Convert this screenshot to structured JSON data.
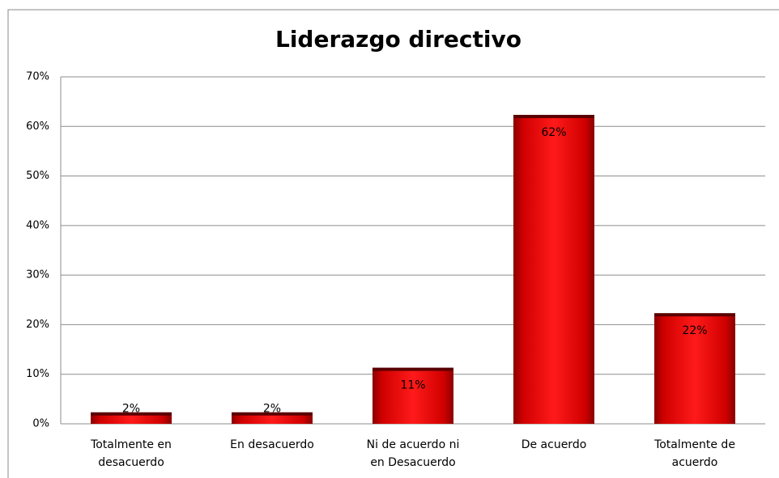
{
  "chart_data": {
    "type": "bar",
    "title": "Liderazgo directivo",
    "categories": [
      "Totalmente en desacuerdo",
      "En desacuerdo",
      "Ni de acuerdo ni en Desacuerdo",
      "De acuerdo",
      "Totalmente de acuerdo"
    ],
    "values": [
      2,
      2,
      11,
      62,
      22
    ],
    "value_labels": [
      "2%",
      "2%",
      "11%",
      "62%",
      "22%"
    ],
    "color": "#e00000",
    "ylim": [
      0,
      70
    ],
    "yticks": [
      {
        "value": 0,
        "label": "0%"
      },
      {
        "value": 10,
        "label": "10%"
      },
      {
        "value": 20,
        "label": "20%"
      },
      {
        "value": 30,
        "label": "30%"
      },
      {
        "value": 40,
        "label": "40%"
      },
      {
        "value": 50,
        "label": "50%"
      },
      {
        "value": 60,
        "label": "60%"
      },
      {
        "value": 70,
        "label": "70%"
      }
    ],
    "grid": true
  }
}
